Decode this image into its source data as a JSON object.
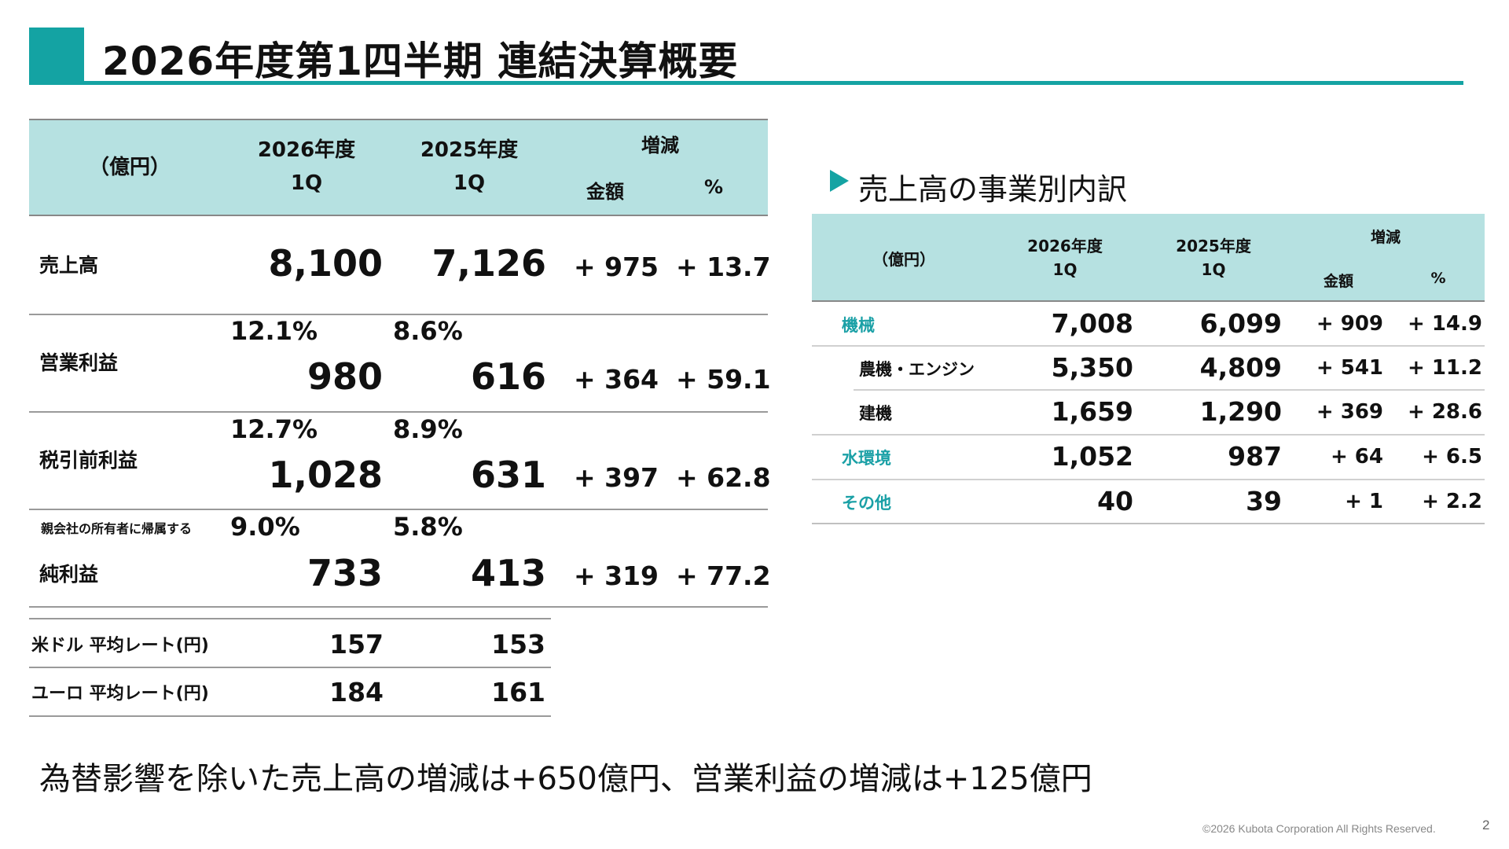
{
  "title": "2026年度第1四半期 連結決算概要",
  "main_table": {
    "unit_label": "（億円）",
    "col_current": "2026年度",
    "col_current_q": "1Q",
    "col_prev": "2025年度",
    "col_prev_q": "1Q",
    "col_change": "増減",
    "col_amount": "金額",
    "col_pct": "%",
    "rows": [
      {
        "label": "売上高",
        "sublabel": "",
        "margin_current": "",
        "margin_prev": "",
        "current": "8,100",
        "prev": "7,126",
        "change": "+ 975",
        "pct": "+ 13.7"
      },
      {
        "label": "営業利益",
        "sublabel": "",
        "margin_current": "12.1%",
        "margin_prev": "8.6%",
        "current": "980",
        "prev": "616",
        "change": "+ 364",
        "pct": "+ 59.1"
      },
      {
        "label": "税引前利益",
        "sublabel": "",
        "margin_current": "12.7%",
        "margin_prev": "8.9%",
        "current": "1,028",
        "prev": "631",
        "change": "+ 397",
        "pct": "+ 62.8"
      },
      {
        "label": "純利益",
        "sublabel": "親会社の所有者に帰属する",
        "margin_current": "9.0%",
        "margin_prev": "5.8%",
        "current": "733",
        "prev": "413",
        "change": "+ 319",
        "pct": "+ 77.2"
      }
    ]
  },
  "fx_table": {
    "rows": [
      {
        "label": "米ドル 平均レート(円)",
        "current": "157",
        "prev": "153"
      },
      {
        "label": "ユーロ 平均レート(円)",
        "current": "184",
        "prev": "161"
      }
    ]
  },
  "segment": {
    "heading": "売上高の事業別内訳",
    "unit_label": "（億円）",
    "col_current": "2026年度",
    "col_current_q": "1Q",
    "col_prev": "2025年度",
    "col_prev_q": "1Q",
    "col_change": "増減",
    "col_amount": "金額",
    "col_pct": "%",
    "rows": [
      {
        "label": "機械",
        "current": "7,008",
        "prev": "6,099",
        "change": "+ 909",
        "pct": "+ 14.9"
      },
      {
        "label": "農機・エンジン",
        "current": "5,350",
        "prev": "4,809",
        "change": "+ 541",
        "pct": "+ 11.2"
      },
      {
        "label": "建機",
        "current": "1,659",
        "prev": "1,290",
        "change": "+ 369",
        "pct": "+ 28.6"
      },
      {
        "label": "水環境",
        "current": "1,052",
        "prev": "987",
        "change": "+ 64",
        "pct": "+ 6.5"
      },
      {
        "label": "その他",
        "current": "40",
        "prev": "39",
        "change": "+ 1",
        "pct": "+ 2.2"
      }
    ]
  },
  "note": "為替影響を除いた売上高の増減は+650億円、営業利益の増減は+125億円",
  "copyright": "©2026 Kubota Corporation All Rights Reserved.",
  "page_number": "2",
  "colors": {
    "accent": "#14a3a3",
    "header_band": "#b6e1e1",
    "segment_label": "#1aa0a6"
  }
}
